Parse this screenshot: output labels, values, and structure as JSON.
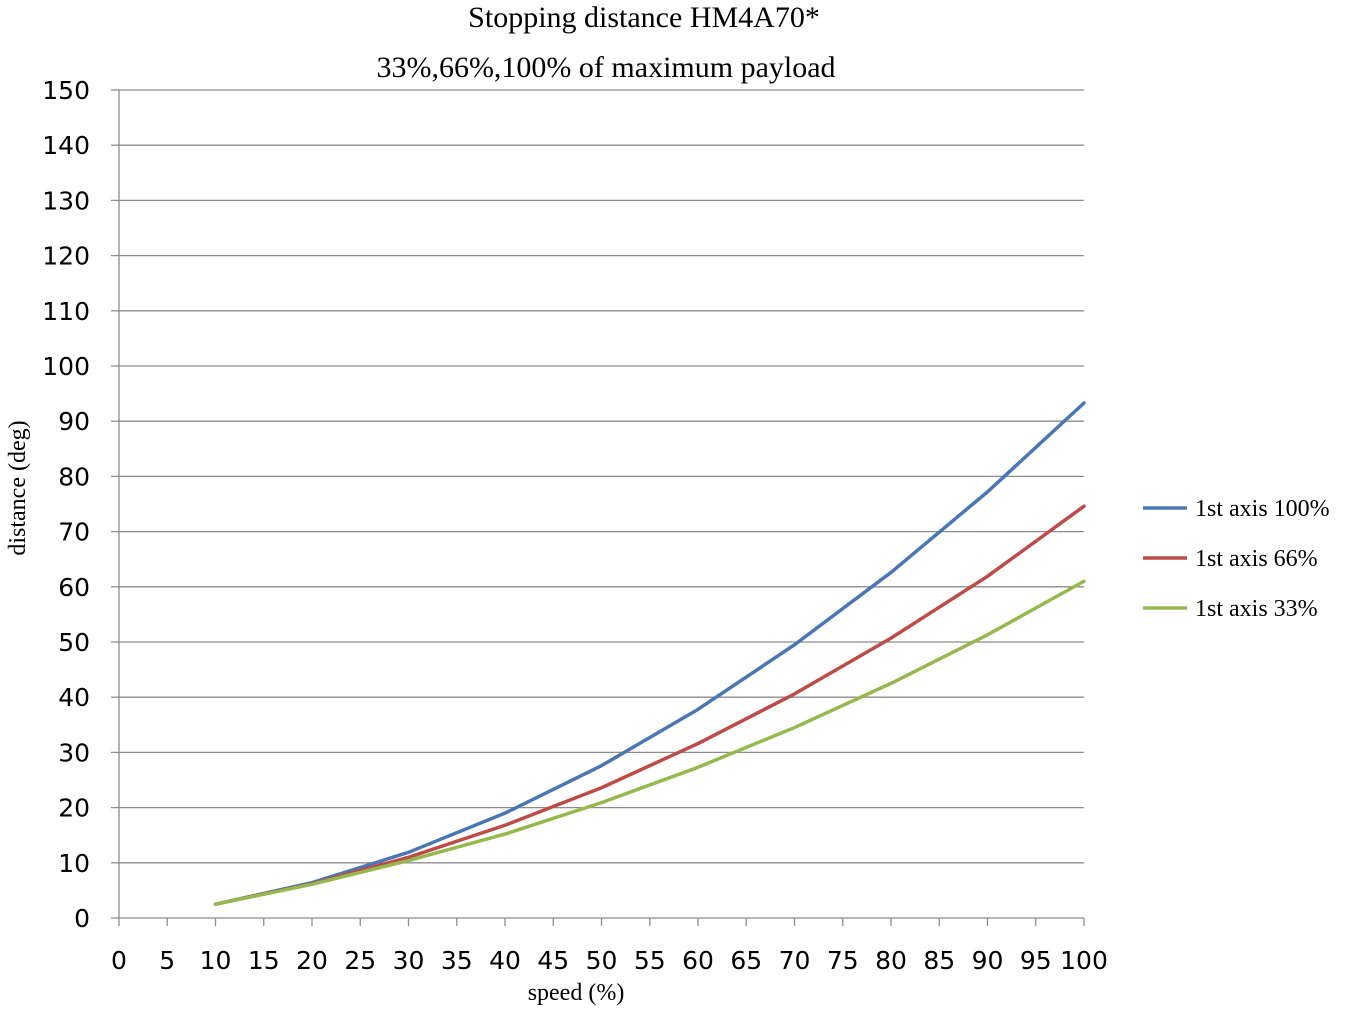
{
  "chart_data": {
    "type": "line",
    "title": "Stopping distance HM4A70*",
    "subtitle": "33%,66%,100% of maximum payload",
    "xlabel": "speed (%)",
    "ylabel": "distance (deg)",
    "xlim": [
      0,
      100
    ],
    "ylim": [
      0,
      150
    ],
    "x_ticks": [
      0,
      5,
      10,
      15,
      20,
      25,
      30,
      35,
      40,
      45,
      50,
      55,
      60,
      65,
      70,
      75,
      80,
      85,
      90,
      95,
      100
    ],
    "y_ticks": [
      0,
      10,
      20,
      30,
      40,
      50,
      60,
      70,
      80,
      90,
      100,
      110,
      120,
      130,
      140,
      150
    ],
    "grid": "horizontal",
    "legend_position": "right",
    "x": [
      10,
      20,
      30,
      40,
      50,
      60,
      70,
      80,
      90,
      100
    ],
    "series": [
      {
        "name": "1st axis 100%",
        "color": "#4a76b3",
        "values": [
          2.5,
          6.4,
          11.9,
          19.0,
          27.6,
          37.8,
          49.5,
          62.6,
          77.2,
          93.3
        ]
      },
      {
        "name": "1st axis 66%",
        "color": "#bd4b48",
        "values": [
          2.5,
          6.2,
          11.0,
          16.8,
          23.6,
          31.6,
          40.6,
          50.7,
          61.9,
          74.6
        ]
      },
      {
        "name": "1st axis 33%",
        "color": "#94b94f",
        "values": [
          2.5,
          6.1,
          10.4,
          15.2,
          20.9,
          27.3,
          34.5,
          42.5,
          51.3,
          61.0
        ]
      }
    ]
  }
}
